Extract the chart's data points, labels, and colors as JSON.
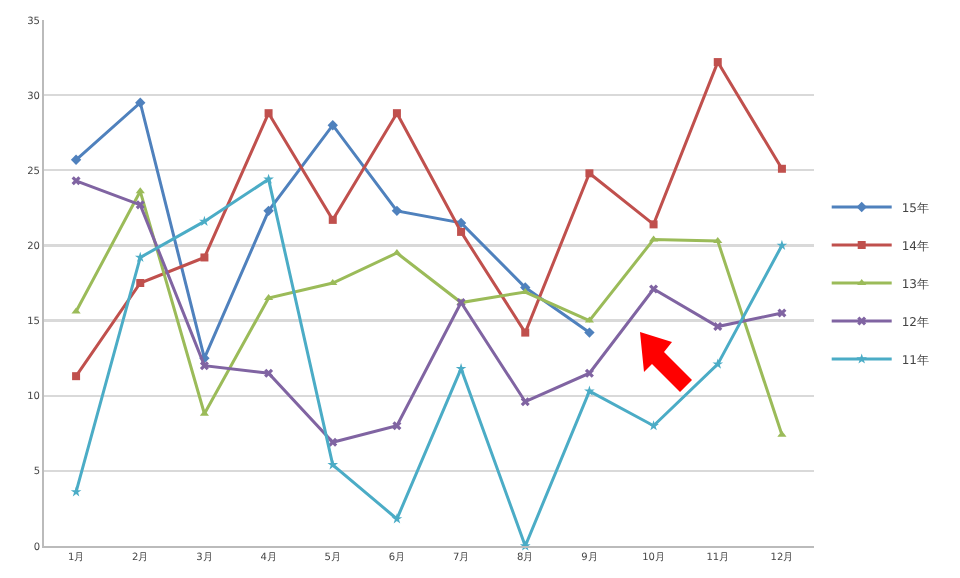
{
  "chart_data": {
    "type": "line",
    "categories": [
      "1月",
      "2月",
      "3月",
      "4月",
      "5月",
      "6月",
      "7月",
      "8月",
      "9月",
      "10月",
      "11月",
      "12月"
    ],
    "ylim": [
      0,
      35
    ],
    "yticks": [
      0,
      5,
      10,
      15,
      20,
      25,
      30,
      35
    ],
    "grid": "y",
    "legend": "right",
    "series": [
      {
        "name": "15年",
        "color": "#4f81bd",
        "marker": "diamond",
        "values": [
          25.7,
          29.5,
          12.5,
          22.3,
          28,
          22.3,
          21.5,
          17.2,
          14.2,
          null,
          null,
          null
        ]
      },
      {
        "name": "14年",
        "color": "#c0504d",
        "marker": "square",
        "values": [
          11.3,
          17.5,
          19.2,
          28.8,
          21.7,
          28.8,
          20.9,
          14.2,
          24.8,
          21.4,
          32.2,
          25.1
        ]
      },
      {
        "name": "13年",
        "color": "#9bbb59",
        "marker": "triangle",
        "values": [
          15.6,
          23.6,
          8.8,
          16.5,
          17.5,
          19.5,
          16.2,
          16.9,
          15,
          20.4,
          20.3,
          7.4
        ]
      },
      {
        "name": "12年",
        "color": "#8064a2",
        "marker": "cross",
        "values": [
          24.3,
          22.7,
          12,
          11.5,
          6.9,
          8,
          16.2,
          9.6,
          11.5,
          17.1,
          14.6,
          15.5
        ]
      },
      {
        "name": "11年",
        "color": "#4bacc6",
        "marker": "star",
        "values": [
          3.6,
          19.2,
          21.6,
          24.4,
          5.4,
          1.8,
          11.8,
          0,
          10.3,
          8,
          12.1,
          20
        ]
      }
    ]
  }
}
